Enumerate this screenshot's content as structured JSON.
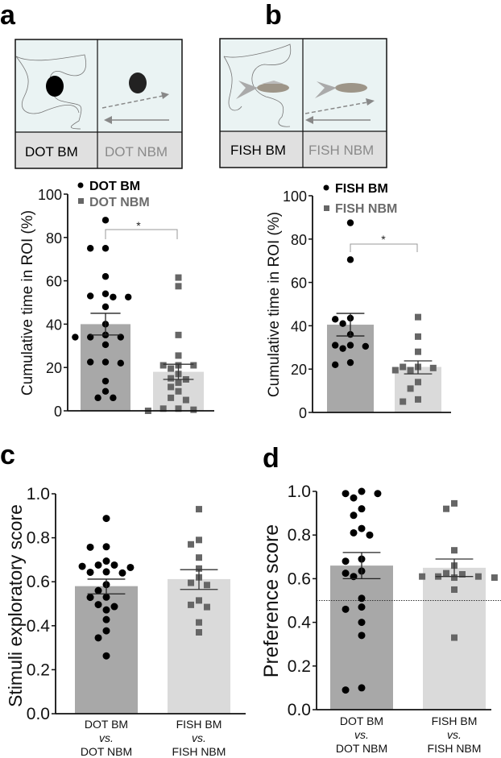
{
  "panel_letters": {
    "a": "a",
    "b": "b",
    "c": "c",
    "d": "d"
  },
  "schematic": {
    "a": {
      "left_label": "DOT BM",
      "right_label": "DOT NBM"
    },
    "b": {
      "left_label": "FISH BM",
      "right_label": "FISH NBM"
    }
  },
  "colors": {
    "bar_bm": "#a8a8a8",
    "bar_nbm": "#dadada",
    "point_bm": "#000000",
    "point_nbm": "#666666",
    "tank": "#eaf3f3",
    "label_row": "#e0e0e0"
  },
  "chart_data": [
    {
      "id": "a",
      "type": "bar",
      "ylabel": "Cumulative time in ROI (%)",
      "xlabel": "",
      "ylim": [
        0,
        100
      ],
      "yticks": [
        "0",
        "20",
        "40",
        "60",
        "80",
        "100"
      ],
      "ytick_values": [
        0,
        20,
        40,
        60,
        80,
        100
      ],
      "legend": [
        "DOT BM",
        "DOT NBM"
      ],
      "legend_position": "top-left",
      "significance": "*",
      "categories": [
        "DOT BM",
        "DOT NBM"
      ],
      "series": [
        {
          "name": "DOT BM",
          "mean": 40,
          "sem_low": 35,
          "sem_high": 45,
          "points": [
            88,
            75,
            75,
            62,
            54,
            52.5,
            52.5,
            53,
            48,
            40,
            35,
            34,
            34,
            34,
            30.5,
            22.5,
            22,
            22.5,
            13.7,
            9,
            6,
            6
          ]
        },
        {
          "name": "DOT NBM",
          "mean": 18,
          "sem_low": 14.5,
          "sem_high": 21.5,
          "points": [
            61.5,
            57.5,
            35,
            25.5,
            21,
            21,
            21,
            19.5,
            17,
            15,
            14.5,
            13,
            11,
            9,
            6,
            5,
            1,
            1,
            0.5,
            0
          ]
        }
      ]
    },
    {
      "id": "b",
      "type": "bar",
      "ylabel": "Cumulative time in ROI (%)",
      "xlabel": "",
      "ylim": [
        0,
        100
      ],
      "yticks": [
        "0",
        "20",
        "40",
        "60",
        "80",
        "100"
      ],
      "ytick_values": [
        0,
        20,
        40,
        60,
        80,
        100
      ],
      "legend": [
        "FISH BM",
        "FISH NBM"
      ],
      "legend_position": "top-left",
      "significance": "*",
      "categories": [
        "FISH BM",
        "FISH NBM"
      ],
      "series": [
        {
          "name": "FISH BM",
          "mean": 40.5,
          "sem_low": 35.3,
          "sem_high": 45.7,
          "points": [
            87.5,
            70.5,
            43.5,
            43,
            41,
            36,
            31,
            30.5,
            31,
            29.5,
            23,
            22
          ]
        },
        {
          "name": "FISH NBM",
          "mean": 21,
          "sem_low": 17.8,
          "sem_high": 23.8,
          "points": [
            44,
            35,
            28,
            21,
            20.5,
            21,
            19.5,
            19.5,
            14,
            11,
            6,
            5
          ]
        }
      ]
    },
    {
      "id": "c",
      "type": "bar",
      "ylabel": "Stimuli exploratory score",
      "xlabel": "",
      "ylim": [
        0,
        1
      ],
      "yticks": [
        "0.0",
        "0.2",
        "0.4",
        "0.6",
        "0.8",
        "1.0"
      ],
      "ytick_values": [
        0,
        0.2,
        0.4,
        0.6,
        0.8,
        1.0
      ],
      "categories": [
        {
          "line1": "DOT BM",
          "vs": "vs.",
          "line3": "DOT NBM"
        },
        {
          "line1": "FISH BM",
          "vs": "vs.",
          "line3": "FISH NBM"
        }
      ],
      "series": [
        {
          "name": "DOT BM vs. DOT NBM",
          "mean": 0.58,
          "sem_low": 0.545,
          "sem_high": 0.612,
          "points": [
            0.888,
            0.759,
            0.757,
            0.694,
            0.676,
            0.67,
            0.676,
            0.665,
            0.645,
            0.64,
            0.643,
            0.587,
            0.56,
            0.529,
            0.53,
            0.496,
            0.487,
            0.472,
            0.428,
            0.377,
            0.345,
            0.263
          ]
        },
        {
          "name": "FISH BM vs. FISH NBM",
          "mean": 0.612,
          "sem_low": 0.565,
          "sem_high": 0.655,
          "points": [
            0.93,
            0.79,
            0.77,
            0.71,
            0.66,
            0.62,
            0.595,
            0.585,
            0.515,
            0.495,
            0.485,
            0.415,
            0.37
          ]
        }
      ]
    },
    {
      "id": "d",
      "type": "bar",
      "ylabel": "Preference score",
      "xlabel": "",
      "ylim": [
        0,
        1
      ],
      "yticks": [
        "0.0",
        "0.2",
        "0.4",
        "0.6",
        "0.8",
        "1.0"
      ],
      "ytick_values": [
        0,
        0.2,
        0.4,
        0.6,
        0.8,
        1.0
      ],
      "reference_line": 0.5,
      "categories": [
        {
          "line1": "DOT BM",
          "vs": "vs.",
          "line3": "DOT NBM"
        },
        {
          "line1": "FISH BM",
          "vs": "vs.",
          "line3": "FISH NBM"
        }
      ],
      "series": [
        {
          "name": "DOT BM vs. DOT NBM",
          "mean": 0.66,
          "sem_low": 0.6,
          "sem_high": 0.72,
          "points": [
            1.0,
            0.99,
            0.97,
            0.99,
            0.92,
            0.89,
            0.83,
            0.81,
            0.8,
            0.69,
            0.68,
            0.635,
            0.625,
            0.61,
            0.51,
            0.47,
            0.46,
            0.4,
            0.34,
            0.1,
            0.09
          ]
        },
        {
          "name": "FISH BM vs. FISH NBM",
          "mean": 0.65,
          "sem_low": 0.61,
          "sem_high": 0.69,
          "points": [
            0.945,
            0.92,
            0.73,
            0.66,
            0.625,
            0.62,
            0.61,
            0.61,
            0.605,
            0.605,
            0.61,
            0.55,
            0.33
          ]
        }
      ]
    }
  ]
}
